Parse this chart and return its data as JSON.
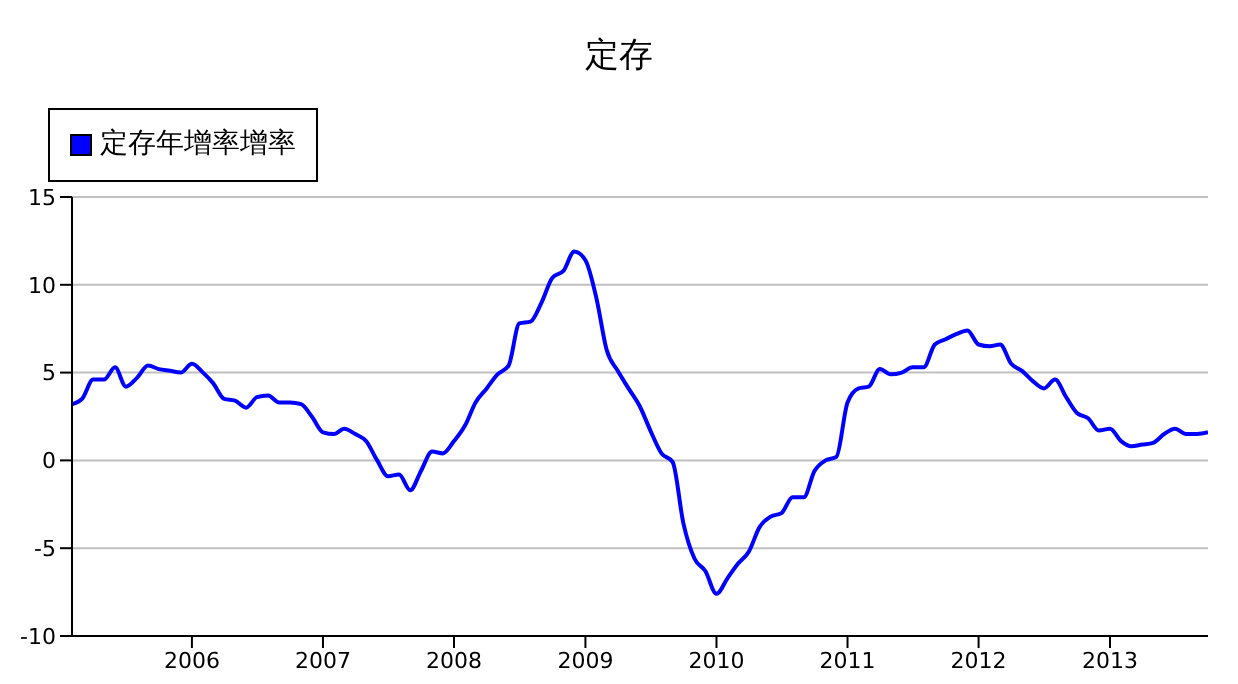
{
  "chart_data": {
    "type": "line",
    "title": "定存",
    "x": [
      "2005-02",
      "2005-03",
      "2005-04",
      "2005-05",
      "2005-06",
      "2005-07",
      "2005-08",
      "2005-09",
      "2005-10",
      "2005-11",
      "2005-12",
      "2006-01",
      "2006-02",
      "2006-03",
      "2006-04",
      "2006-05",
      "2006-06",
      "2006-07",
      "2006-08",
      "2006-09",
      "2006-10",
      "2006-11",
      "2006-12",
      "2007-01",
      "2007-02",
      "2007-03",
      "2007-04",
      "2007-05",
      "2007-06",
      "2007-07",
      "2007-08",
      "2007-09",
      "2007-10",
      "2007-11",
      "2007-12",
      "2008-01",
      "2008-02",
      "2008-03",
      "2008-04",
      "2008-05",
      "2008-06",
      "2008-07",
      "2008-08",
      "2008-09",
      "2008-10",
      "2008-11",
      "2008-12",
      "2009-01",
      "2009-02",
      "2009-03",
      "2009-04",
      "2009-05",
      "2009-06",
      "2009-07",
      "2009-08",
      "2009-09",
      "2009-10",
      "2009-11",
      "2009-12",
      "2010-01",
      "2010-02",
      "2010-03",
      "2010-04",
      "2010-05",
      "2010-06",
      "2010-07",
      "2010-08",
      "2010-09",
      "2010-10",
      "2010-11",
      "2010-12",
      "2011-01",
      "2011-02",
      "2011-03",
      "2011-04",
      "2011-05",
      "2011-06",
      "2011-07",
      "2011-08",
      "2011-09",
      "2011-10",
      "2011-11",
      "2011-12",
      "2012-01",
      "2012-02",
      "2012-03",
      "2012-04",
      "2012-05",
      "2012-06",
      "2012-07",
      "2012-08",
      "2012-09",
      "2012-10",
      "2012-11",
      "2012-12",
      "2013-01",
      "2013-02",
      "2013-03",
      "2013-04",
      "2013-05",
      "2013-06",
      "2013-07",
      "2013-08",
      "2013-09",
      "2013-10"
    ],
    "series": [
      {
        "name": "定存年增率增率",
        "color": "#0000ff",
        "values": [
          3.2,
          3.5,
          4.6,
          4.6,
          5.3,
          4.2,
          4.7,
          5.4,
          5.2,
          5.1,
          5.0,
          5.5,
          5.0,
          4.4,
          3.5,
          3.4,
          3.0,
          3.6,
          3.7,
          3.3,
          3.3,
          3.2,
          2.5,
          1.6,
          1.5,
          1.8,
          1.5,
          1.1,
          0,
          -0.9,
          -0.8,
          -1.7,
          -0.6,
          0.5,
          0.4,
          1.1,
          2.0,
          3.3,
          4.1,
          4.9,
          5.4,
          7.8,
          7.9,
          9.0,
          10.4,
          10.8,
          11.9,
          11.4,
          9.2,
          6.3,
          5.1,
          4.1,
          3.1,
          1.7,
          0.4,
          -0.1,
          -3.6,
          -5.6,
          -6.3,
          -7.6,
          -6.7,
          -5.9,
          -5.2,
          -3.8,
          -3.2,
          -3.0,
          -2.1,
          -2.1,
          -0.6,
          0,
          0.2,
          3.3,
          4.1,
          4.2,
          5.2,
          4.9,
          5.0,
          5.3,
          5.3,
          6.6,
          6.9,
          7.2,
          7.4,
          6.6,
          6.5,
          6.6,
          5.5,
          5.1,
          4.5,
          4.1,
          4.6,
          3.6,
          2.7,
          2.4,
          1.7,
          1.8,
          1.1,
          0.8,
          0.9,
          1.0,
          1.5,
          1.8,
          1.5,
          1.5,
          1.6
        ]
      }
    ],
    "xlim": [
      "2005-02",
      "2013-10"
    ],
    "xticks": [
      "2006",
      "2007",
      "2008",
      "2009",
      "2010",
      "2011",
      "2012",
      "2013"
    ],
    "ylim": [
      -10,
      15
    ],
    "yticks": [
      -10,
      -5,
      0,
      5,
      10,
      15
    ],
    "grid": "y",
    "legend": "top left",
    "marker": "none",
    "line_style": "solid"
  }
}
